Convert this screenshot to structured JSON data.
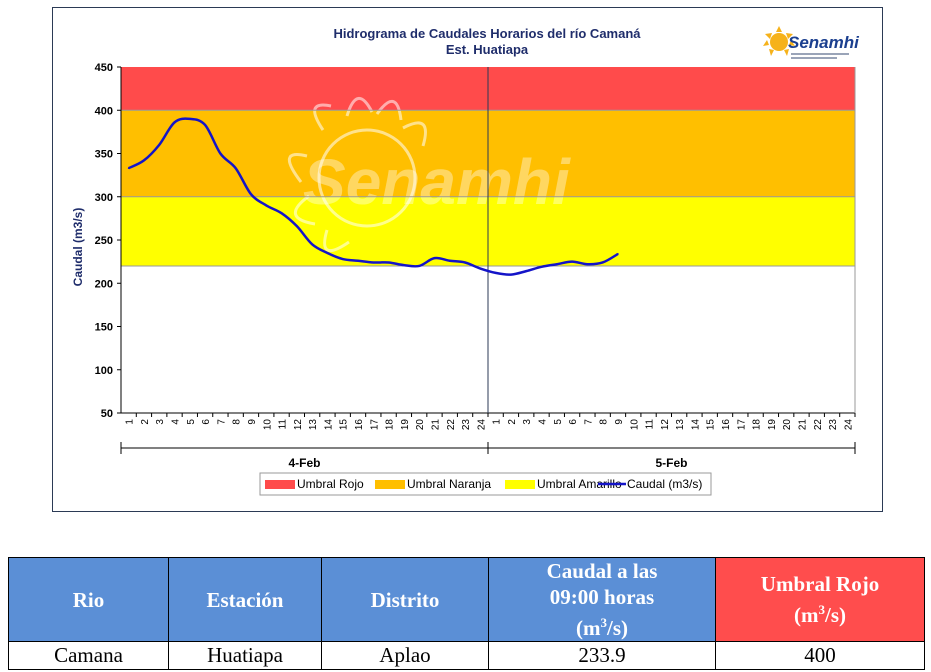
{
  "chart_data": {
    "type": "line",
    "title": "Hidrograma de Caudales Horarios del río Camaná",
    "subtitle": "Est. Huatiapa",
    "ylabel": "Caudal  (m3/s)",
    "xlabel": "",
    "ylim": [
      50,
      450
    ],
    "yticks": [
      50,
      100,
      150,
      200,
      250,
      300,
      350,
      400,
      450
    ],
    "day_groups": [
      {
        "label": "4-Feb",
        "hours": [
          "1",
          "2",
          "3",
          "4",
          "5",
          "6",
          "7",
          "8",
          "9",
          "10",
          "11",
          "12",
          "13",
          "14",
          "15",
          "16",
          "17",
          "18",
          "19",
          "20",
          "21",
          "22",
          "23",
          "24"
        ]
      },
      {
        "label": "5-Feb",
        "hours": [
          "1",
          "2",
          "3",
          "4",
          "5",
          "6",
          "7",
          "8",
          "9",
          "10",
          "11",
          "12",
          "13",
          "14",
          "15",
          "16",
          "17",
          "18",
          "19",
          "20",
          "21",
          "22",
          "23",
          "24"
        ]
      }
    ],
    "thresholds": [
      {
        "name": "Umbral Rojo",
        "from": 400,
        "to": 450,
        "color": "#ff4b4b"
      },
      {
        "name": "Umbral Naranja",
        "from": 300,
        "to": 400,
        "color": "#ffbf00"
      },
      {
        "name": "Umbral Amarillo",
        "from": 220,
        "to": 300,
        "color": "#ffff00"
      }
    ],
    "series": [
      {
        "name": "Caudal (m3/s)",
        "color": "#1414c8",
        "x": [
          1,
          2,
          3,
          4,
          5,
          6,
          7,
          8,
          9,
          10,
          11,
          12,
          13,
          14,
          15,
          16,
          17,
          18,
          19,
          20,
          21,
          22,
          23,
          24,
          25,
          26,
          27,
          28,
          29,
          30,
          31,
          32,
          33
        ],
        "values": [
          333,
          342,
          360,
          386,
          390,
          383,
          350,
          333,
          303,
          290,
          281,
          266,
          245,
          235,
          228,
          226,
          224,
          224,
          221,
          220,
          229,
          226,
          224,
          217,
          212,
          210,
          214,
          219,
          222,
          225,
          222,
          224,
          233.9
        ]
      }
    ],
    "legend_position": "bottom"
  },
  "logo": {
    "text": "Senamhi"
  },
  "watermark": {
    "text": "Senamhi"
  },
  "table": {
    "headers": [
      "Rio",
      "Estación",
      "Distrito",
      "Caudal a las 09:00 horas (m3/s)",
      "Umbral Rojo (m3/s)"
    ],
    "header_caudal_line1": "Caudal a las",
    "header_caudal_line2": "09:00 horas",
    "header_caudal_unit_a": "(m",
    "header_caudal_unit_sup": "3",
    "header_caudal_unit_b": "/s)",
    "header_umbral_line1": "Umbral Rojo",
    "header_umbral_unit_a": "(m",
    "header_umbral_unit_sup": "3",
    "header_umbral_unit_b": "/s)",
    "row": [
      "Camana",
      "Huatiapa",
      "Aplao",
      "233.9",
      "400"
    ]
  }
}
